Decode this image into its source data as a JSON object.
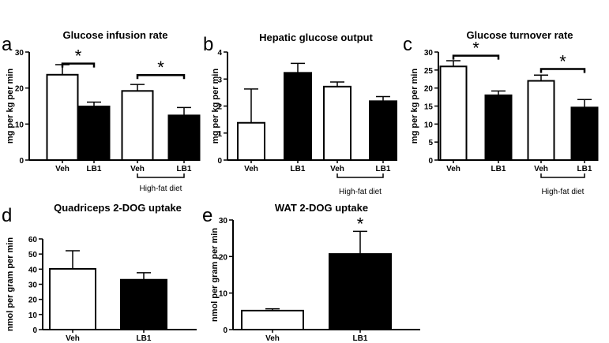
{
  "chart_data": [
    {
      "panel": "a",
      "type": "bar",
      "title": "Glucose infusion rate",
      "ylabel": "mg per kg per min",
      "ylim": [
        0,
        30
      ],
      "ticks": [
        0,
        10,
        20,
        30
      ],
      "categories": [
        "Veh",
        "LB1",
        "Veh",
        "LB1"
      ],
      "values": [
        23.7,
        14.9,
        19.2,
        12.4
      ],
      "errors": [
        2.8,
        1.2,
        1.8,
        2.2
      ],
      "fills": [
        "white",
        "black",
        "white",
        "black"
      ],
      "group_label": "High-fat diet",
      "significance": [
        {
          "from": 0,
          "to": 1,
          "level": 26.8,
          "mark": "*"
        },
        {
          "from": 2,
          "to": 3,
          "level": 23.6,
          "mark": "*"
        }
      ]
    },
    {
      "panel": "b",
      "type": "bar",
      "title": "Hepatic glucose output",
      "ylabel": "mg per kg per min",
      "ylim": [
        0,
        4
      ],
      "ticks": [
        0,
        1,
        2,
        3,
        4
      ],
      "categories": [
        "Veh",
        "LB1",
        "Veh",
        "LB1"
      ],
      "values": [
        1.38,
        3.23,
        2.72,
        2.18
      ],
      "errors": [
        1.25,
        0.35,
        0.17,
        0.17
      ],
      "fills": [
        "white",
        "black",
        "white",
        "black"
      ],
      "group_label": "High-fat diet",
      "significance": []
    },
    {
      "panel": "c",
      "type": "bar",
      "title": "Glucose turnover rate",
      "ylabel": "mg per kg per min",
      "ylim": [
        0,
        30
      ],
      "ticks": [
        0,
        5,
        10,
        15,
        20,
        25,
        30
      ],
      "categories": [
        "Veh",
        "LB1",
        "Veh",
        "LB1"
      ],
      "values": [
        26.0,
        18.0,
        22.0,
        14.6
      ],
      "errors": [
        1.6,
        1.2,
        1.6,
        2.2
      ],
      "fills": [
        "white",
        "black",
        "white",
        "black"
      ],
      "group_label": "High-fat diet",
      "significance": [
        {
          "from": 0,
          "to": 1,
          "level": 29.0,
          "mark": "*"
        },
        {
          "from": 2,
          "to": 3,
          "level": 25.3,
          "mark": "*"
        }
      ]
    },
    {
      "panel": "d",
      "type": "bar",
      "title": "Quadriceps 2-DOG uptake",
      "ylabel": "nmol per gram per min",
      "ylim": [
        0,
        60
      ],
      "ticks": [
        0,
        10,
        20,
        30,
        40,
        50,
        60
      ],
      "categories": [
        "Veh",
        "LB1"
      ],
      "values": [
        40.2,
        33.0
      ],
      "errors": [
        12.0,
        4.6
      ],
      "fills": [
        "white",
        "black"
      ],
      "significance": []
    },
    {
      "panel": "e",
      "type": "bar",
      "title": "WAT 2-DOG uptake",
      "ylabel": "nmol per gram per min",
      "ylim": [
        0,
        30
      ],
      "ticks": [
        0,
        10,
        20,
        30
      ],
      "categories": [
        "Veh",
        "LB1"
      ],
      "values": [
        5.2,
        20.7
      ],
      "errors": [
        0.5,
        6.2
      ],
      "fills": [
        "white",
        "black"
      ],
      "significance": [
        {
          "over": 1,
          "mark": "*"
        }
      ]
    }
  ]
}
